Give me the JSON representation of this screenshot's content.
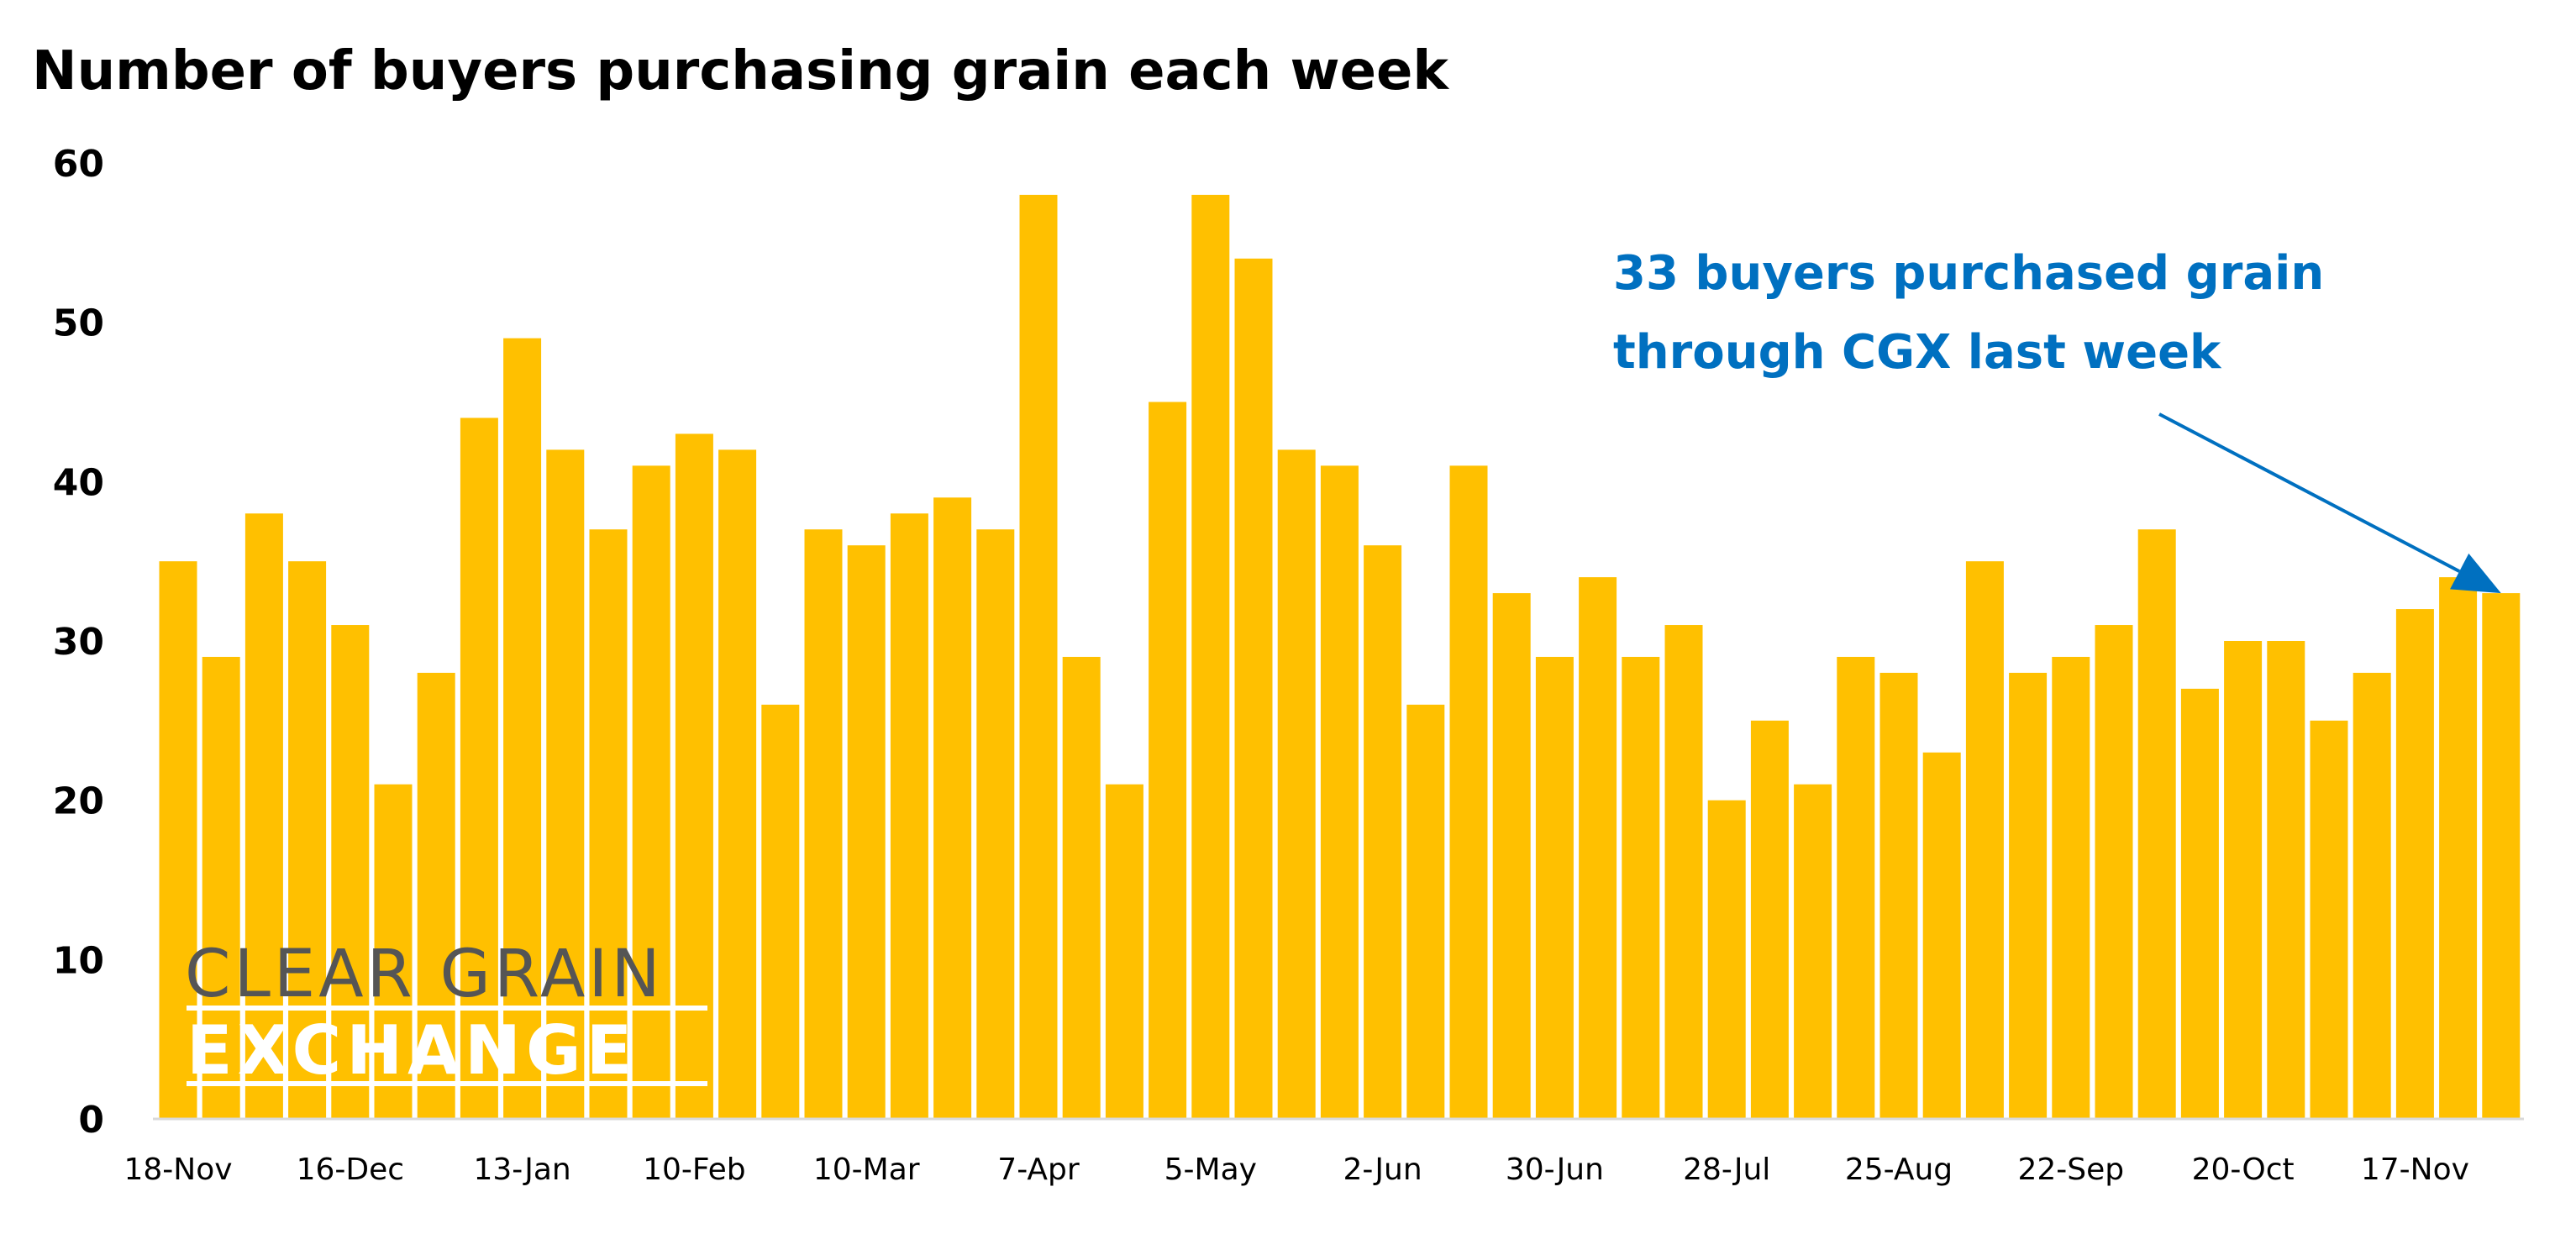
{
  "chart_data": {
    "type": "bar",
    "title": "Number of buyers purchasing grain each week",
    "xlabel": "",
    "ylabel": "",
    "ylim": [
      0,
      60
    ],
    "yticks": [
      0,
      10,
      20,
      30,
      40,
      50,
      60
    ],
    "grid": false,
    "bar_color": "#FFC000",
    "tick_labels": [
      "18-Nov",
      "16-Dec",
      "13-Jan",
      "10-Feb",
      "10-Mar",
      "7-Apr",
      "5-May",
      "2-Jun",
      "30-Jun",
      "28-Jul",
      "25-Aug",
      "22-Sep",
      "20-Oct",
      "17-Nov"
    ],
    "tick_every": 4,
    "values": [
      35,
      29,
      38,
      35,
      31,
      21,
      28,
      44,
      49,
      42,
      37,
      41,
      43,
      42,
      26,
      37,
      36,
      38,
      39,
      37,
      58,
      29,
      21,
      45,
      58,
      54,
      42,
      41,
      36,
      26,
      41,
      33,
      29,
      34,
      29,
      31,
      20,
      25,
      21,
      29,
      28,
      23,
      35,
      28,
      29,
      31,
      37,
      27,
      30,
      30,
      25,
      28,
      32,
      34,
      33
    ],
    "annotation": {
      "lines": [
        "33 buyers purchased grain",
        "through CGX last week"
      ],
      "color": "#0070C0",
      "points_to_bar": "last"
    }
  },
  "logo": {
    "line1": "CLEAR GRAIN",
    "line2": "EXCHANGE",
    "line1_color": "#555555",
    "line2_color": "#FFFFFF"
  }
}
